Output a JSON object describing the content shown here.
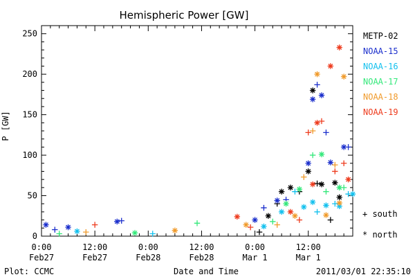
{
  "chart_data": {
    "type": "scatter",
    "title": "Hemispheric Power [GW]",
    "xlabel": "Date and Time",
    "ylabel": "P [GW]",
    "ylim": [
      0,
      260
    ],
    "xlim": [
      0,
      70
    ],
    "x_unit": "hours since Feb27 0:00",
    "yticks": [
      0,
      50,
      100,
      150,
      200,
      250
    ],
    "xticks": [
      {
        "x": 0,
        "line1": "0:00",
        "line2": "Feb27"
      },
      {
        "x": 12,
        "line1": "12:00",
        "line2": "Feb27"
      },
      {
        "x": 24,
        "line1": "0:00",
        "line2": "Feb28"
      },
      {
        "x": 36,
        "line1": "12:00",
        "line2": "Feb28"
      },
      {
        "x": 48,
        "line1": "0:00",
        "line2": "Mar 1"
      },
      {
        "x": 60,
        "line1": "12:00",
        "line2": "Mar 1"
      }
    ],
    "legend_position": "right",
    "marker_legend": {
      "south": "+ south",
      "north": "* north"
    },
    "grid": false,
    "series": [
      {
        "name": "METP-02",
        "color": "#000000",
        "points": [
          {
            "x": 49,
            "y": 5,
            "h": "south"
          },
          {
            "x": 51,
            "y": 25,
            "h": "north"
          },
          {
            "x": 53,
            "y": 40,
            "h": "south"
          },
          {
            "x": 54,
            "y": 55,
            "h": "north"
          },
          {
            "x": 56,
            "y": 60,
            "h": "north"
          },
          {
            "x": 58,
            "y": 55,
            "h": "south"
          },
          {
            "x": 60,
            "y": 80,
            "h": "north"
          },
          {
            "x": 61,
            "y": 180,
            "h": "north"
          },
          {
            "x": 62,
            "y": 65,
            "h": "south"
          },
          {
            "x": 63,
            "y": 64,
            "h": "north"
          },
          {
            "x": 65,
            "y": 20,
            "h": "south"
          },
          {
            "x": 66,
            "y": 66,
            "h": "north"
          },
          {
            "x": 67,
            "y": 48,
            "h": "north"
          }
        ]
      },
      {
        "name": "NOAA-15",
        "color": "#1a2ecc",
        "points": [
          {
            "x": 1,
            "y": 14,
            "h": "north"
          },
          {
            "x": 3,
            "y": 8,
            "h": "south"
          },
          {
            "x": 6,
            "y": 11,
            "h": "north"
          },
          {
            "x": 17,
            "y": 18,
            "h": "north"
          },
          {
            "x": 18,
            "y": 19,
            "h": "south"
          },
          {
            "x": 48,
            "y": 20,
            "h": "north"
          },
          {
            "x": 50,
            "y": 35,
            "h": "south"
          },
          {
            "x": 53,
            "y": 44,
            "h": "north"
          },
          {
            "x": 55,
            "y": 45,
            "h": "south"
          },
          {
            "x": 60,
            "y": 90,
            "h": "north"
          },
          {
            "x": 61,
            "y": 169,
            "h": "north"
          },
          {
            "x": 62,
            "y": 187,
            "h": "south"
          },
          {
            "x": 63,
            "y": 174,
            "h": "north"
          },
          {
            "x": 64,
            "y": 128,
            "h": "south"
          },
          {
            "x": 65,
            "y": 91,
            "h": "north"
          },
          {
            "x": 68,
            "y": 110,
            "h": "north"
          },
          {
            "x": 69,
            "y": 110,
            "h": "south"
          }
        ]
      },
      {
        "name": "NOAA-16",
        "color": "#12c0ee",
        "points": [
          {
            "x": 8,
            "y": 6,
            "h": "north"
          },
          {
            "x": 25,
            "y": 3,
            "h": "south"
          },
          {
            "x": 50,
            "y": 12,
            "h": "north"
          },
          {
            "x": 54,
            "y": 30,
            "h": "north"
          },
          {
            "x": 57,
            "y": 55,
            "h": "south"
          },
          {
            "x": 59,
            "y": 36,
            "h": "north"
          },
          {
            "x": 61,
            "y": 42,
            "h": "north"
          },
          {
            "x": 62,
            "y": 30,
            "h": "south"
          },
          {
            "x": 64,
            "y": 38,
            "h": "north"
          },
          {
            "x": 66,
            "y": 40,
            "h": "south"
          },
          {
            "x": 67,
            "y": 37,
            "h": "north"
          },
          {
            "x": 69,
            "y": 52,
            "h": "south"
          },
          {
            "x": 70,
            "y": 52,
            "h": "north"
          }
        ]
      },
      {
        "name": "NOAA-17",
        "color": "#33e87a",
        "points": [
          {
            "x": 4,
            "y": 3,
            "h": "south"
          },
          {
            "x": 21,
            "y": 4,
            "h": "north"
          },
          {
            "x": 35,
            "y": 16,
            "h": "south"
          },
          {
            "x": 52,
            "y": 18,
            "h": "south"
          },
          {
            "x": 55,
            "y": 40,
            "h": "north"
          },
          {
            "x": 58,
            "y": 58,
            "h": "north"
          },
          {
            "x": 61,
            "y": 100,
            "h": "south"
          },
          {
            "x": 63,
            "y": 101,
            "h": "north"
          },
          {
            "x": 64,
            "y": 55,
            "h": "south"
          },
          {
            "x": 67,
            "y": 60,
            "h": "north"
          },
          {
            "x": 68,
            "y": 60,
            "h": "south"
          }
        ]
      },
      {
        "name": "NOAA-18",
        "color": "#f09a2a",
        "points": [
          {
            "x": 10,
            "y": 5,
            "h": "south"
          },
          {
            "x": 30,
            "y": 7,
            "h": "north"
          },
          {
            "x": 46,
            "y": 14,
            "h": "north"
          },
          {
            "x": 53,
            "y": 14,
            "h": "south"
          },
          {
            "x": 57,
            "y": 25,
            "h": "north"
          },
          {
            "x": 59,
            "y": 73,
            "h": "south"
          },
          {
            "x": 61,
            "y": 130,
            "h": "south"
          },
          {
            "x": 62,
            "y": 200,
            "h": "north"
          },
          {
            "x": 64,
            "y": 26,
            "h": "north"
          },
          {
            "x": 66,
            "y": 88,
            "h": "south"
          },
          {
            "x": 67,
            "y": 41,
            "h": "north"
          },
          {
            "x": 68,
            "y": 197,
            "h": "north"
          }
        ]
      },
      {
        "name": "NOAA-19",
        "color": "#ee3a1c",
        "points": [
          {
            "x": 12,
            "y": 14,
            "h": "south"
          },
          {
            "x": 44,
            "y": 24,
            "h": "north"
          },
          {
            "x": 47,
            "y": 11,
            "h": "south"
          },
          {
            "x": 56,
            "y": 30,
            "h": "north"
          },
          {
            "x": 58,
            "y": 20,
            "h": "south"
          },
          {
            "x": 60,
            "y": 128,
            "h": "south"
          },
          {
            "x": 61,
            "y": 64,
            "h": "north"
          },
          {
            "x": 62,
            "y": 140,
            "h": "north"
          },
          {
            "x": 63,
            "y": 142,
            "h": "south"
          },
          {
            "x": 65,
            "y": 210,
            "h": "north"
          },
          {
            "x": 66,
            "y": 80,
            "h": "south"
          },
          {
            "x": 67,
            "y": 233,
            "h": "north"
          },
          {
            "x": 68,
            "y": 90,
            "h": "south"
          },
          {
            "x": 69,
            "y": 70,
            "h": "north"
          }
        ]
      }
    ]
  },
  "footer": {
    "plot_credit": "Plot: CCMC",
    "timestamp": "2011/03/01 22:35:10"
  }
}
